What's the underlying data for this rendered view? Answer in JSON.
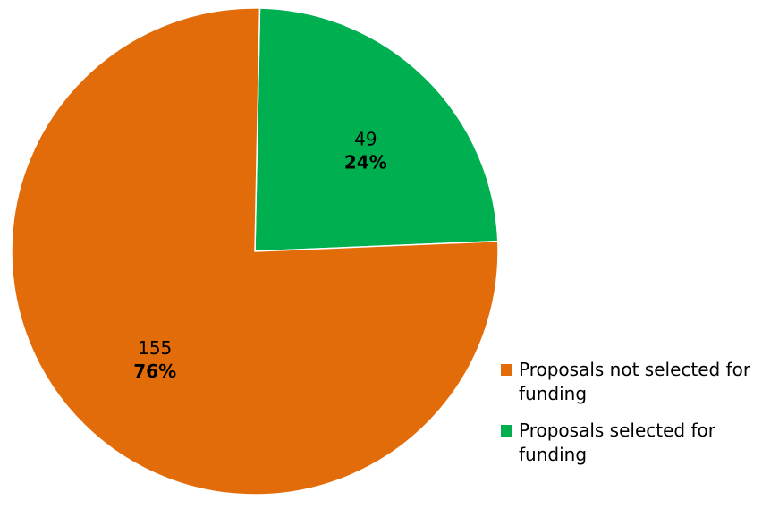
{
  "chart_data": {
    "type": "pie",
    "slices": [
      {
        "label": "Proposals selected for funding",
        "value": 49,
        "percent": "24%",
        "color": "#00b050"
      },
      {
        "label": "Proposals not selected for funding",
        "value": 155,
        "percent": "76%",
        "color": "#e36c0a"
      }
    ],
    "start_angle": "12 o'clock",
    "direction": "clockwise",
    "legend_position": "bottom-right",
    "legend": [
      {
        "label": "Proposals not selected for funding",
        "color": "#e36c0a"
      },
      {
        "label": "Proposals selected for funding",
        "color": "#00b050"
      }
    ]
  }
}
